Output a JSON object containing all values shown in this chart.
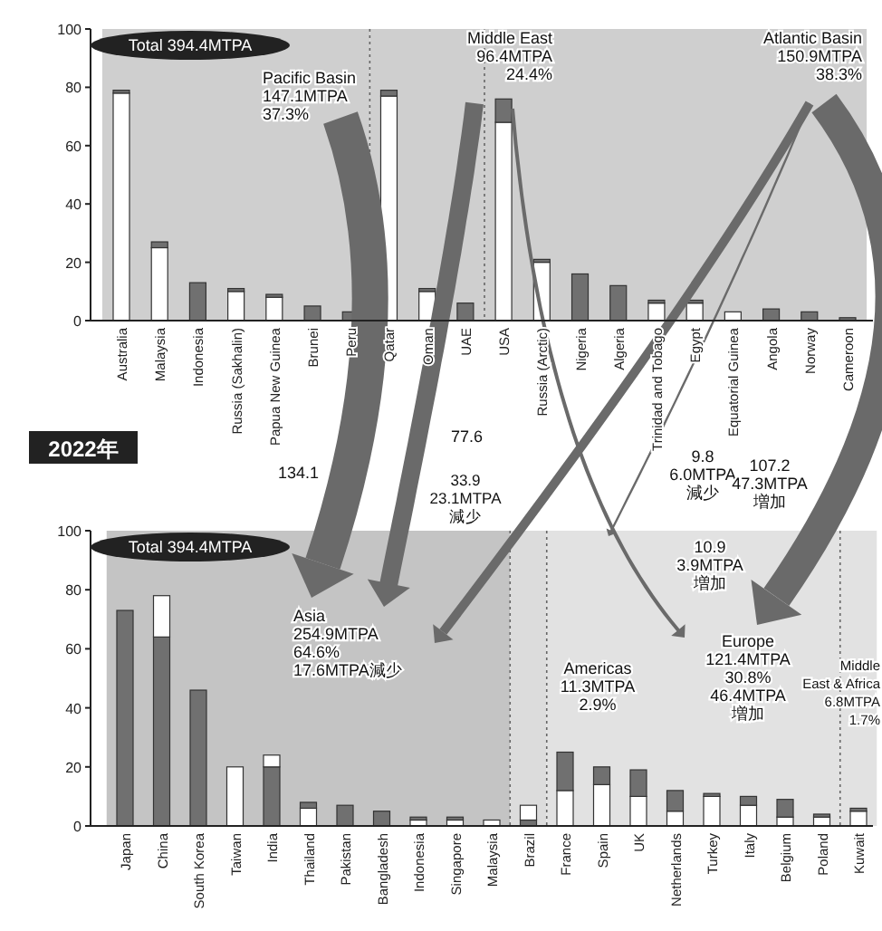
{
  "chart_data": [
    {
      "type": "bar",
      "stacked": true,
      "categories": [
        "Australia",
        "Malaysia",
        "Indonesia",
        "Russia (Sakhalin)",
        "Papua New Guinea",
        "Brunei",
        "Peru",
        "Qatar",
        "Oman",
        "UAE",
        "USA",
        "Russia (Arctic)",
        "Nigeria",
        "Algeria",
        "Trinidad and Tobago",
        "Egypt",
        "Equatorial Guinea",
        "Angola",
        "Norway",
        "Cameroon"
      ],
      "series": [
        {
          "colors": [
            "#ffffff",
            "#ffffff",
            "#707070",
            "#ffffff",
            "#ffffff",
            "#707070",
            "#707070",
            "#ffffff",
            "#ffffff",
            "#707070",
            "#ffffff",
            "#ffffff",
            "#707070",
            "#707070",
            "#ffffff",
            "#ffffff",
            "#ffffff",
            "#707070",
            "#707070",
            "#707070"
          ],
          "values": [
            78,
            25,
            13,
            10,
            8,
            5,
            3,
            77,
            10,
            6,
            68,
            20,
            16,
            12,
            6,
            6,
            3,
            4,
            3,
            1
          ]
        },
        {
          "color": "#707070",
          "values": [
            1,
            2,
            null,
            1,
            1,
            null,
            null,
            2,
            1,
            null,
            8,
            1,
            null,
            null,
            1,
            1,
            null,
            null,
            null,
            null
          ]
        }
      ],
      "ylim": [
        0,
        100
      ],
      "yticks": [
        0,
        20,
        40,
        60,
        80,
        100
      ],
      "bands": [
        {
          "axis": "x",
          "from": "Australia",
          "to": "Peru",
          "color": "#cfcfcf"
        },
        {
          "axis": "x",
          "from": "Qatar",
          "to": "UAE",
          "color": "#cfcfcf"
        },
        {
          "axis": "x",
          "from": "USA",
          "to": "Cameroon",
          "color": "#cfcfcf"
        }
      ],
      "annotations": [
        "Total 394.4MTPA",
        "Pacific Basin\n147.1MTPA\n37.3%",
        "Middle East\n96.4MTPA\n24.4%",
        "Atlantic Basin\n150.9MTPA\n38.3%"
      ]
    },
    {
      "type": "bar",
      "stacked": true,
      "categories": [
        "Japan",
        "China",
        "South Korea",
        "Taiwan",
        "India",
        "Thailand",
        "Pakistan",
        "Bangladesh",
        "Indonesia",
        "Singapore",
        "Malaysia",
        "Brazil",
        "France",
        "Spain",
        "UK",
        "Netherlands",
        "Turkey",
        "Italy",
        "Belgium",
        "Poland",
        "Kuwait"
      ],
      "series": [
        {
          "colors": [
            "#707070",
            "#707070",
            "#707070",
            "#ffffff",
            "#707070",
            "#ffffff",
            "#707070",
            "#707070",
            "#ffffff",
            "#ffffff",
            "#ffffff",
            "#707070",
            "#ffffff",
            "#ffffff",
            "#ffffff",
            "#ffffff",
            "#ffffff",
            "#ffffff",
            "#ffffff",
            "#ffffff",
            "#ffffff"
          ],
          "values": [
            73,
            64,
            46,
            20,
            20,
            6,
            7,
            5,
            2,
            2,
            2,
            2,
            12,
            14,
            10,
            5,
            10,
            7,
            3,
            3,
            5
          ]
        },
        {
          "colors": [
            null,
            "#ffffff",
            null,
            null,
            "#ffffff",
            "#707070",
            null,
            null,
            "#707070",
            "#707070",
            null,
            "#ffffff",
            "#707070",
            "#707070",
            "#707070",
            "#707070",
            "#707070",
            "#707070",
            "#707070",
            "#707070",
            "#707070"
          ],
          "values": [
            null,
            14,
            null,
            null,
            4,
            2,
            null,
            null,
            1,
            1,
            null,
            5,
            13,
            6,
            9,
            7,
            1,
            3,
            6,
            1,
            1
          ]
        }
      ],
      "ylim": [
        0,
        100
      ],
      "yticks": [
        0,
        20,
        40,
        60,
        80,
        100
      ],
      "bands": [
        {
          "axis": "x",
          "from": "Japan",
          "to": "Malaysia",
          "color": "#c4c4c4"
        },
        {
          "axis": "x",
          "from": "Brazil",
          "to": "Brazil",
          "color": "#dcdcdc"
        },
        {
          "axis": "x",
          "from": "France",
          "to": "Poland",
          "color": "#e2e2e2"
        },
        {
          "axis": "x",
          "from": "Kuwait",
          "to": "Kuwait",
          "color": "#e2e2e2"
        }
      ],
      "annotations": [
        "Total 394.4MTPA",
        "Asia\n254.9MTPA\n64.6%\n17.6MTPA減少",
        "Americas\n11.3MTPA\n2.9%",
        "Europe\n121.4MTPA\n30.8%\n46.4MTPA\n増加",
        "Middle\nEast & Africa\n6.8MTPA\n1.7%",
        "2022年",
        "134.1",
        "77.6",
        "33.9\n23.1MTPA\n減少",
        "9.8\n6.0MTPA\n減少",
        "10.9\n3.9MTPA\n増加",
        "107.2\n47.3MTPA\n増加"
      ]
    }
  ]
}
